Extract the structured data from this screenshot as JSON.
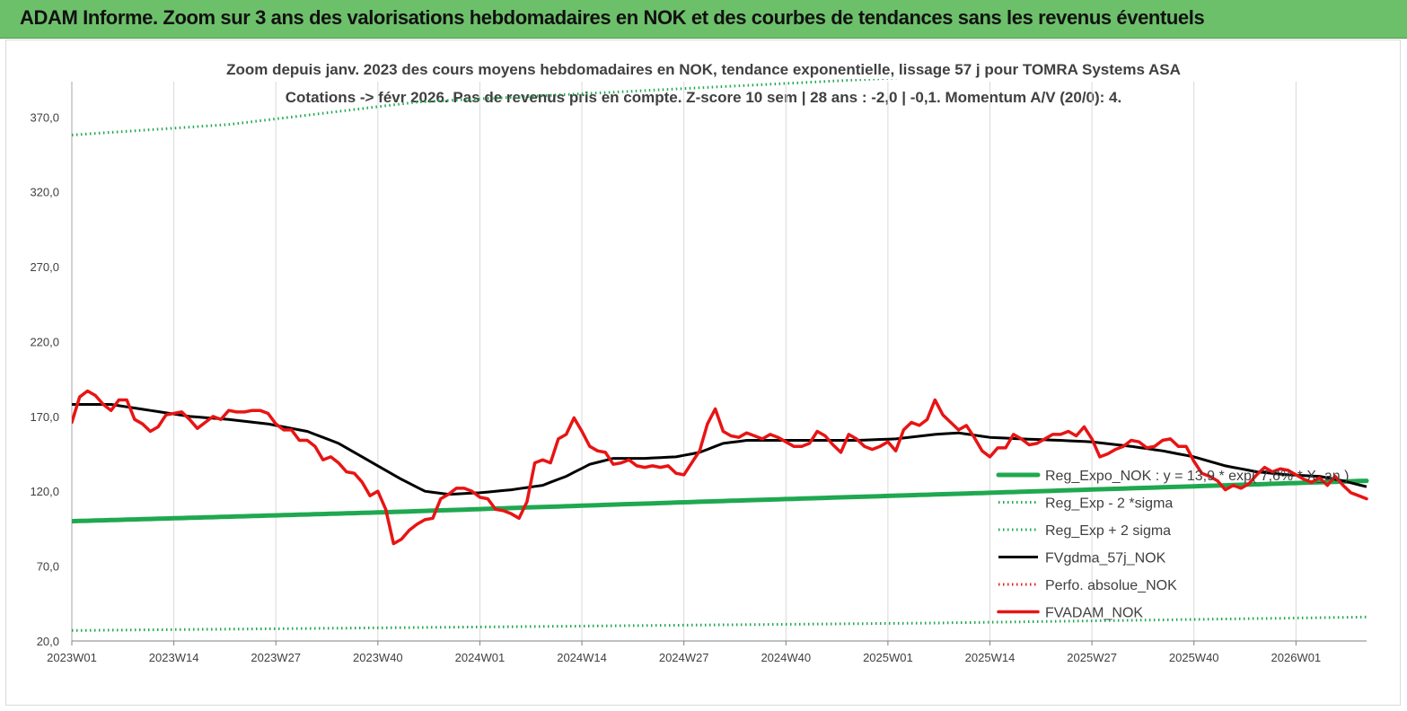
{
  "header": {
    "banner_title": "ADAM Informe. Zoom sur 3 ans des valorisations hebdomadaires en NOK et des courbes de tendances sans les revenus éventuels"
  },
  "chart_data": {
    "type": "line",
    "title_line1": "Zoom depuis janv. 2023 des cours moyens hebdomadaires en NOK, tendance exponentielle, lissage 57 j pour TOMRA Systems ASA",
    "title_line2": "Cotations -> févr 2026.  Pas de revenus pris en compte. Z-score 10 sem  | 28 ans : -2,0 | -0,1. Momentum A/V (20/0): 4.",
    "ylim": [
      20,
      390
    ],
    "yticks": [
      "20,0",
      "70,0",
      "120,0",
      "170,0",
      "220,0",
      "270,0",
      "320,0",
      "370,0"
    ],
    "ytick_values": [
      20,
      70,
      120,
      170,
      220,
      270,
      320,
      370
    ],
    "x_count": 166,
    "xticks": [
      "2023W01",
      "2023W14",
      "2023W27",
      "2023W40",
      "2024W01",
      "2024W14",
      "2024W27",
      "2024W40",
      "2025W01",
      "2025W14",
      "2025W27",
      "2025W40",
      "2026W01"
    ],
    "xtick_index": [
      0,
      13,
      26,
      39,
      52,
      65,
      78,
      91,
      104,
      117,
      130,
      143,
      156
    ],
    "grid": "vertical",
    "legend_position": "right",
    "colors": {
      "reg_expo": "#1fa850",
      "reg_minus": "#1fa850",
      "reg_plus": "#1fa850",
      "fvgdma": "#000000",
      "perfo": "#e02020",
      "fvadam": "#e81414"
    },
    "series": [
      {
        "name": "Reg_Expo_NOK : y = 13,9 * exp( 7,6% * X_an )",
        "key": "reg_expo",
        "style": "solid-thick",
        "anchors": [
          [
            0,
            100
          ],
          [
            40,
            106
          ],
          [
            80,
            113
          ],
          [
            120,
            119.5
          ],
          [
            165,
            127
          ]
        ]
      },
      {
        "name": "Reg_Exp - 2 *sigma",
        "key": "reg_minus",
        "style": "dotted",
        "anchors": [
          [
            0,
            27
          ],
          [
            55,
            29.5
          ],
          [
            110,
            32
          ],
          [
            165,
            36
          ]
        ]
      },
      {
        "name": "Reg_Exp + 2 sigma",
        "key": "reg_plus",
        "style": "dotted",
        "anchors": [
          [
            0,
            358
          ],
          [
            20,
            365
          ],
          [
            44,
            380
          ],
          [
            165,
            412
          ]
        ]
      },
      {
        "name": "FVgdma_57j_NOK",
        "key": "fvgdma",
        "style": "solid",
        "anchors": [
          [
            0,
            178
          ],
          [
            5,
            178
          ],
          [
            10,
            174
          ],
          [
            15,
            170
          ],
          [
            20,
            168
          ],
          [
            25,
            165
          ],
          [
            30,
            160
          ],
          [
            34,
            152
          ],
          [
            38,
            140
          ],
          [
            42,
            128
          ],
          [
            45,
            120
          ],
          [
            48,
            118
          ],
          [
            52,
            119
          ],
          [
            56,
            121
          ],
          [
            60,
            124
          ],
          [
            63,
            130
          ],
          [
            66,
            138
          ],
          [
            69,
            142
          ],
          [
            73,
            142
          ],
          [
            77,
            143
          ],
          [
            80,
            146
          ],
          [
            83,
            152
          ],
          [
            86,
            154
          ],
          [
            90,
            154
          ],
          [
            95,
            154
          ],
          [
            100,
            154
          ],
          [
            105,
            155
          ],
          [
            110,
            158
          ],
          [
            113,
            159
          ],
          [
            117,
            156
          ],
          [
            121,
            155
          ],
          [
            126,
            154
          ],
          [
            130,
            153
          ],
          [
            135,
            150
          ],
          [
            139,
            147
          ],
          [
            143,
            143
          ],
          [
            147,
            137
          ],
          [
            151,
            133
          ],
          [
            155,
            131
          ],
          [
            159,
            130
          ],
          [
            162,
            127
          ],
          [
            165,
            123
          ]
        ]
      },
      {
        "name": "Perfo. absolue_NOK",
        "key": "perfo",
        "style": "dotted",
        "values": []
      },
      {
        "name": "FVADAM_NOK",
        "key": "fvadam",
        "style": "solid-thick",
        "values": [
          166,
          183,
          187,
          184,
          178,
          174,
          181,
          181,
          168,
          165,
          160,
          163,
          171,
          172,
          173,
          168,
          162,
          166,
          170,
          168,
          174,
          173,
          173,
          174,
          174,
          172,
          165,
          161,
          161,
          154,
          154,
          150,
          141,
          143,
          139,
          133,
          132,
          126,
          117,
          120,
          108,
          85,
          88,
          94,
          98,
          101,
          102,
          115,
          118,
          122,
          122,
          120,
          116,
          115,
          108,
          107,
          105,
          102,
          113,
          139,
          141,
          139,
          155,
          158,
          169,
          160,
          150,
          147,
          146,
          138,
          139,
          141,
          137,
          136,
          137,
          136,
          137,
          132,
          131,
          139,
          147,
          165,
          175,
          160,
          157,
          156,
          159,
          157,
          155,
          158,
          156,
          153,
          150,
          150,
          152,
          160,
          157,
          151,
          146,
          158,
          155,
          150,
          148,
          150,
          153,
          147,
          161,
          166,
          164,
          168,
          181,
          171,
          166,
          161,
          164,
          156,
          147,
          143,
          149,
          149,
          158,
          155,
          151,
          152,
          155,
          158,
          158,
          160,
          157,
          163,
          155,
          143,
          145,
          148,
          150,
          154,
          153,
          149,
          150,
          154,
          155,
          150,
          150,
          140,
          132,
          130,
          127,
          121,
          124,
          122,
          125,
          131,
          136,
          133,
          135,
          134,
          131,
          128,
          126,
          129,
          124,
          130,
          124,
          119,
          117,
          115
        ]
      }
    ]
  }
}
